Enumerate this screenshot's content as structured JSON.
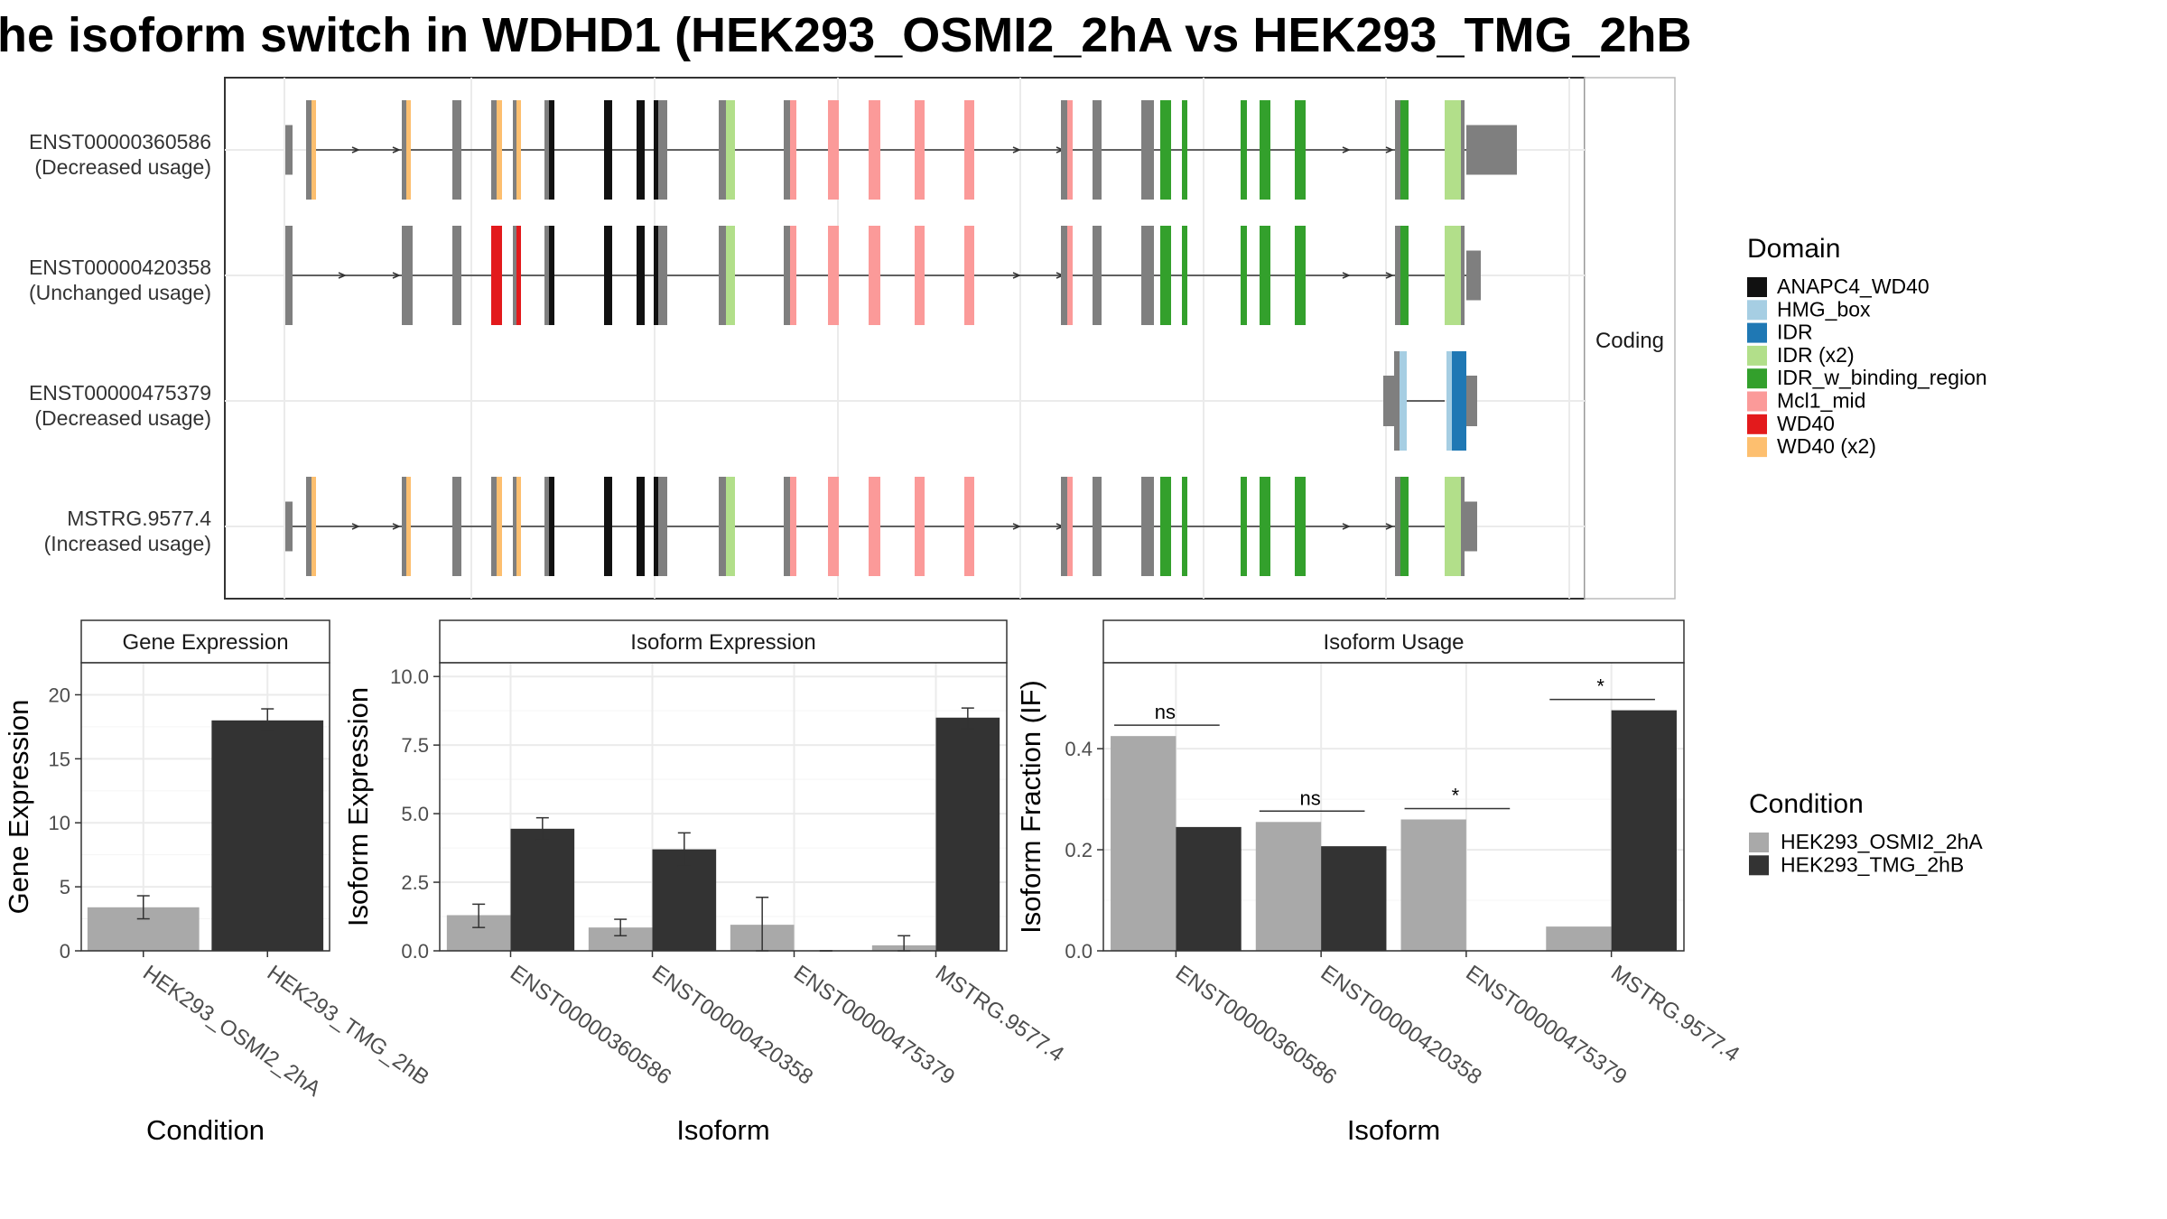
{
  "title": "he isoform switch in WDHD1 (HEK293_OSMI2_2hA vs HEK293_TMG_2hB",
  "colors": {
    "cond1": "#a9a9a9",
    "cond2": "#333333",
    "exon_gray": "#7f7f7f"
  },
  "chart_data": [
    {
      "type": "gene_structure",
      "strip_label": "Coding",
      "isoforms": [
        {
          "id": "ENST00000360586",
          "usage": "(Decreased usage)"
        },
        {
          "id": "ENST00000420358",
          "usage": "(Unchanged usage)"
        },
        {
          "id": "ENST00000475379",
          "usage": "(Decreased usage)"
        },
        {
          "id": "MSTRG.9577.4",
          "usage": "(Increased usage)"
        }
      ],
      "legend_title": "Domain",
      "domains": [
        {
          "name": "ANAPC4_WD40",
          "color": "#111111"
        },
        {
          "name": "HMG_box",
          "color": "#a6cee3"
        },
        {
          "name": "IDR",
          "color": "#1f78b4"
        },
        {
          "name": "IDR (x2)",
          "color": "#b2df8a"
        },
        {
          "name": "IDR_w_binding_region",
          "color": "#33a02c"
        },
        {
          "name": "Mcl1_mid",
          "color": "#fb9a99"
        },
        {
          "name": "WD40",
          "color": "#e31a1c"
        },
        {
          "name": "WD40 (x2)",
          "color": "#fdbf6f"
        }
      ]
    },
    {
      "type": "bar",
      "title": "Gene Expression",
      "xlabel": "Condition",
      "ylabel": "Gene Expression",
      "categories": [
        "HEK293_OSMI2_2hA",
        "HEK293_TMG_2hB"
      ],
      "values": [
        3.4,
        18.0
      ],
      "errors": [
        [
          2.5,
          4.3
        ],
        [
          17.2,
          18.9
        ]
      ],
      "ylim": [
        0,
        22.5
      ],
      "yticks": [
        0,
        5,
        10,
        15,
        20
      ]
    },
    {
      "type": "bar",
      "title": "Isoform Expression",
      "xlabel": "Isoform",
      "ylabel": "Isoform Expression",
      "categories": [
        "ENST00000360586",
        "ENST00000420358",
        "ENST00000475379",
        "MSTRG.9577.4"
      ],
      "series": [
        {
          "name": "HEK293_OSMI2_2hA",
          "values": [
            1.3,
            0.85,
            0.95,
            0.2
          ],
          "errors": [
            [
              0.85,
              1.7
            ],
            [
              0.55,
              1.15
            ],
            [
              0.0,
              1.95
            ],
            [
              0.0,
              0.55
            ]
          ]
        },
        {
          "name": "HEK293_TMG_2hB",
          "values": [
            4.45,
            3.7,
            0.0,
            8.5
          ],
          "errors": [
            [
              4.05,
              4.85
            ],
            [
              3.1,
              4.3
            ],
            [
              0.0,
              0.0
            ],
            [
              8.1,
              8.85
            ]
          ]
        }
      ],
      "ylim": [
        0,
        10.5
      ],
      "yticks": [
        0.0,
        2.5,
        5.0,
        7.5,
        10.0
      ]
    },
    {
      "type": "bar",
      "title": "Isoform Usage",
      "xlabel": "Isoform",
      "ylabel": "Isoform Fraction (IF)",
      "categories": [
        "ENST00000360586",
        "ENST00000420358",
        "ENST00000475379",
        "MSTRG.9577.4"
      ],
      "series": [
        {
          "name": "HEK293_OSMI2_2hA",
          "values": [
            0.425,
            0.255,
            0.26,
            0.048
          ]
        },
        {
          "name": "HEK293_TMG_2hB",
          "values": [
            0.245,
            0.207,
            0.0,
            0.476
          ]
        }
      ],
      "significance": [
        "ns",
        "ns",
        "*",
        "*"
      ],
      "ylim": [
        0,
        0.57
      ],
      "yticks": [
        0.0,
        0.2,
        0.4
      ]
    }
  ],
  "condition_legend": {
    "title": "Condition",
    "items": [
      "HEK293_OSMI2_2hA",
      "HEK293_TMG_2hB"
    ]
  }
}
